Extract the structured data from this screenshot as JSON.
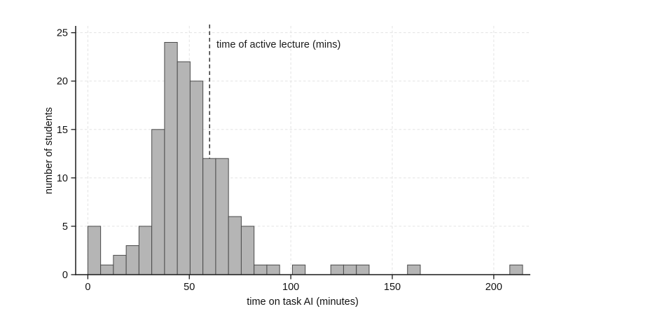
{
  "chart_data": {
    "type": "bar",
    "subtype": "histogram",
    "title": "",
    "xlabel": "time on task AI (minutes)",
    "ylabel": "number of students",
    "xlim": [
      -6,
      218
    ],
    "ylim": [
      0,
      25.7
    ],
    "xticks": [
      0,
      50,
      100,
      150,
      200
    ],
    "yticks": [
      0,
      5,
      10,
      15,
      20,
      25
    ],
    "grid": true,
    "legend": false,
    "bin_width": 6.3,
    "bins": [
      {
        "start": 0,
        "count": 5
      },
      {
        "start": 6.3,
        "count": 1
      },
      {
        "start": 12.6,
        "count": 2
      },
      {
        "start": 18.9,
        "count": 3
      },
      {
        "start": 25.2,
        "count": 5
      },
      {
        "start": 31.5,
        "count": 15
      },
      {
        "start": 37.8,
        "count": 24
      },
      {
        "start": 44.1,
        "count": 22
      },
      {
        "start": 50.4,
        "count": 20
      },
      {
        "start": 56.7,
        "count": 12
      },
      {
        "start": 63.0,
        "count": 12
      },
      {
        "start": 69.3,
        "count": 6
      },
      {
        "start": 75.6,
        "count": 5
      },
      {
        "start": 81.9,
        "count": 1
      },
      {
        "start": 88.2,
        "count": 1
      },
      {
        "start": 100.8,
        "count": 1
      },
      {
        "start": 119.7,
        "count": 1
      },
      {
        "start": 126.0,
        "count": 1
      },
      {
        "start": 132.3,
        "count": 1
      },
      {
        "start": 157.5,
        "count": 1
      },
      {
        "start": 207.9,
        "count": 1
      }
    ],
    "reference_line": {
      "x": 60,
      "label": "time of active lecture (mins)"
    },
    "colors": {
      "bar_fill": "#b5b5b5",
      "bar_border": "#4a4a4a",
      "grid": "#e3e3e3",
      "axis": "#1a1a1a",
      "reference_line": "#3f3f3f",
      "text": "#111111"
    }
  }
}
